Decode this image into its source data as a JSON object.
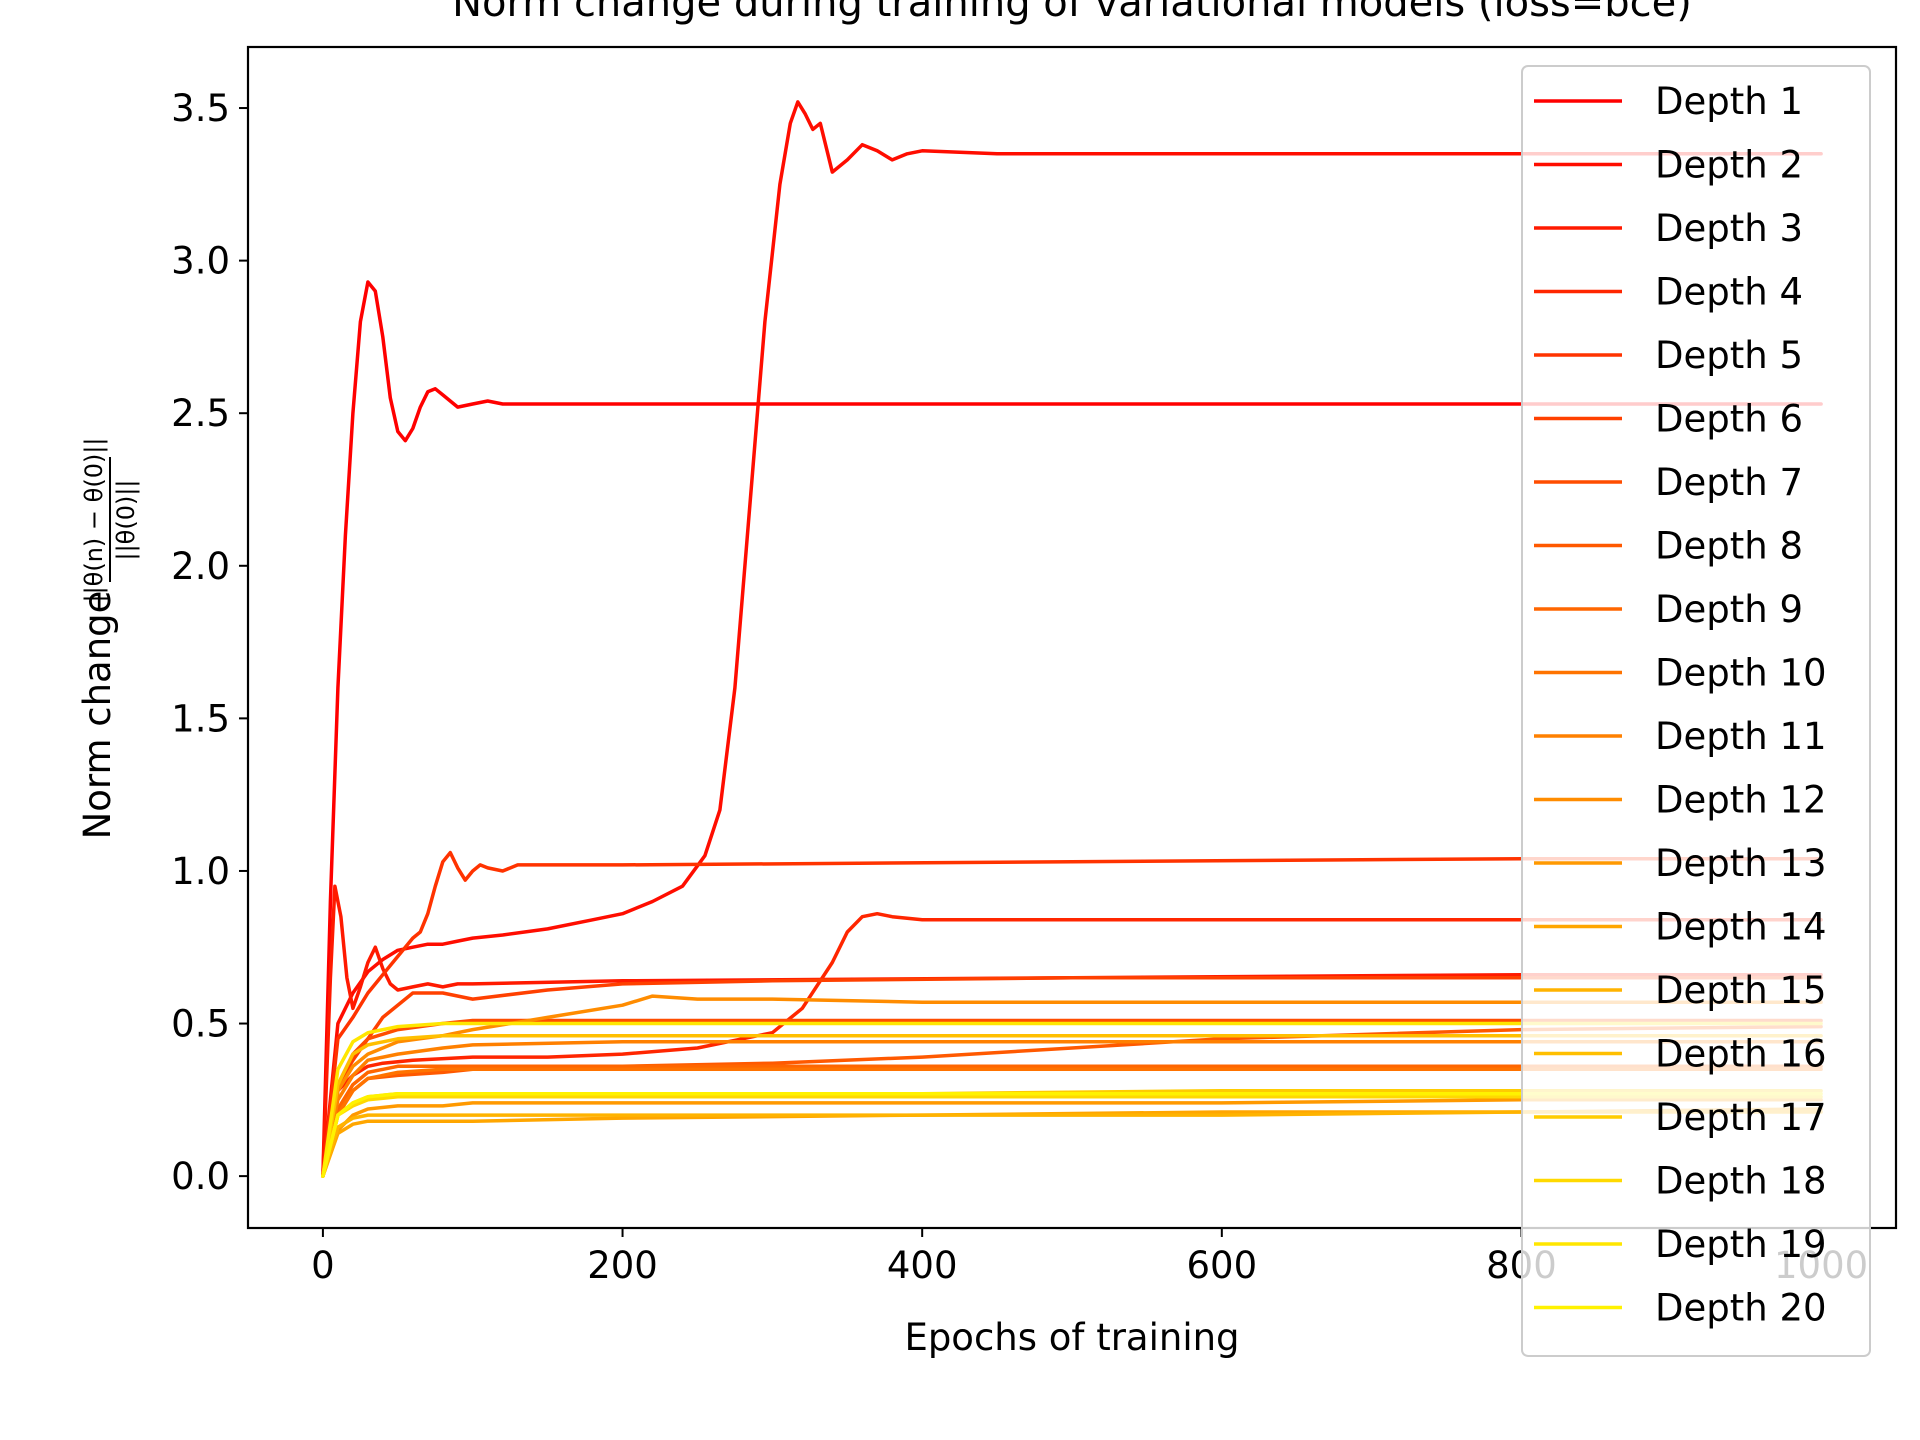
{
  "chart_data": {
    "type": "line",
    "title": "Norm change during training of variational models (loss=bce)",
    "xlabel": "Epochs of training",
    "ylabel": "Norm change",
    "ylabel_formula": {
      "numerator": "||θ(n) − θ(0)||",
      "denominator": "||θ(0)||"
    },
    "xlim": [
      -50,
      1050
    ],
    "ylim": [
      -0.17,
      3.7
    ],
    "xticks": [
      0,
      200,
      400,
      600,
      800,
      1000
    ],
    "xtick_labels": [
      "0",
      "200",
      "400",
      "600",
      "800",
      "1000"
    ],
    "yticks": [
      0.0,
      0.5,
      1.0,
      1.5,
      2.0,
      2.5,
      3.0,
      3.5
    ],
    "ytick_labels": [
      "0.0",
      "0.5",
      "1.0",
      "1.5",
      "2.0",
      "2.5",
      "3.0",
      "3.5"
    ],
    "grid": false,
    "legend_position": "upper right",
    "series": [
      {
        "name": "Depth 1",
        "color": "#ff0000",
        "x": [
          0,
          5,
          10,
          15,
          20,
          25,
          30,
          35,
          40,
          45,
          50,
          55,
          60,
          65,
          70,
          75,
          80,
          90,
          100,
          110,
          120,
          140,
          160,
          200,
          300,
          500,
          800,
          1000
        ],
        "values": [
          0,
          0.9,
          1.6,
          2.1,
          2.5,
          2.8,
          2.93,
          2.9,
          2.75,
          2.55,
          2.44,
          2.41,
          2.45,
          2.52,
          2.57,
          2.58,
          2.56,
          2.52,
          2.53,
          2.54,
          2.53,
          2.53,
          2.53,
          2.53,
          2.53,
          2.53,
          2.53,
          2.53
        ]
      },
      {
        "name": "Depth 2",
        "color": "#ff0d00",
        "x": [
          0,
          10,
          20,
          30,
          40,
          50,
          60,
          70,
          80,
          90,
          100,
          120,
          150,
          180,
          200,
          220,
          240,
          255,
          265,
          275,
          285,
          295,
          305,
          312,
          317,
          322,
          327,
          332,
          340,
          350,
          360,
          370,
          380,
          390,
          400,
          450,
          500,
          800,
          1000
        ],
        "values": [
          0,
          0.5,
          0.6,
          0.67,
          0.71,
          0.74,
          0.75,
          0.76,
          0.76,
          0.77,
          0.78,
          0.79,
          0.81,
          0.84,
          0.86,
          0.9,
          0.95,
          1.05,
          1.2,
          1.6,
          2.2,
          2.8,
          3.25,
          3.45,
          3.52,
          3.48,
          3.43,
          3.45,
          3.29,
          3.33,
          3.38,
          3.36,
          3.33,
          3.35,
          3.36,
          3.35,
          3.35,
          3.35,
          3.35
        ]
      },
      {
        "name": "Depth 3",
        "color": "#ff1a00",
        "x": [
          0,
          5,
          8,
          12,
          16,
          20,
          25,
          30,
          35,
          40,
          45,
          50,
          60,
          70,
          80,
          90,
          100,
          200,
          500,
          800,
          1000
        ],
        "values": [
          0,
          0.65,
          0.95,
          0.85,
          0.65,
          0.55,
          0.62,
          0.7,
          0.75,
          0.68,
          0.63,
          0.61,
          0.62,
          0.63,
          0.62,
          0.63,
          0.63,
          0.64,
          0.65,
          0.66,
          0.66
        ]
      },
      {
        "name": "Depth 4",
        "color": "#ff2600",
        "x": [
          0,
          10,
          20,
          30,
          40,
          60,
          100,
          150,
          200,
          250,
          300,
          320,
          340,
          350,
          360,
          370,
          380,
          400,
          500,
          800,
          1000
        ],
        "values": [
          0,
          0.28,
          0.33,
          0.36,
          0.37,
          0.38,
          0.39,
          0.39,
          0.4,
          0.42,
          0.47,
          0.55,
          0.7,
          0.8,
          0.85,
          0.86,
          0.85,
          0.84,
          0.84,
          0.84,
          0.84
        ]
      },
      {
        "name": "Depth 5",
        "color": "#ff3300",
        "x": [
          0,
          10,
          20,
          30,
          40,
          50,
          60,
          65,
          70,
          75,
          80,
          85,
          90,
          95,
          100,
          105,
          110,
          120,
          130,
          140,
          160,
          200,
          500,
          800,
          1000
        ],
        "values": [
          0,
          0.45,
          0.52,
          0.6,
          0.66,
          0.72,
          0.78,
          0.8,
          0.86,
          0.95,
          1.03,
          1.06,
          1.01,
          0.97,
          1.0,
          1.02,
          1.01,
          1.0,
          1.02,
          1.02,
          1.02,
          1.02,
          1.03,
          1.04,
          1.04
        ]
      },
      {
        "name": "Depth 6",
        "color": "#ff4000",
        "x": [
          0,
          10,
          20,
          30,
          40,
          60,
          80,
          100,
          150,
          200,
          300,
          500,
          800,
          1000
        ],
        "values": [
          0,
          0.3,
          0.38,
          0.45,
          0.52,
          0.6,
          0.6,
          0.58,
          0.61,
          0.63,
          0.64,
          0.65,
          0.65,
          0.65
        ]
      },
      {
        "name": "Depth 7",
        "color": "#ff4d00",
        "x": [
          0,
          10,
          20,
          30,
          50,
          80,
          100,
          200,
          400,
          600,
          800,
          1000
        ],
        "values": [
          0,
          0.3,
          0.4,
          0.45,
          0.48,
          0.5,
          0.51,
          0.51,
          0.51,
          0.51,
          0.51,
          0.51
        ]
      },
      {
        "name": "Depth 8",
        "color": "#ff5900",
        "x": [
          0,
          10,
          20,
          30,
          50,
          80,
          100,
          200,
          300,
          400,
          500,
          600,
          800,
          1000
        ],
        "values": [
          0,
          0.2,
          0.28,
          0.32,
          0.33,
          0.34,
          0.35,
          0.36,
          0.37,
          0.39,
          0.42,
          0.45,
          0.48,
          0.49
        ]
      },
      {
        "name": "Depth 9",
        "color": "#ff6600",
        "x": [
          0,
          10,
          20,
          30,
          50,
          80,
          100,
          200,
          400,
          600,
          800,
          1000
        ],
        "values": [
          0,
          0.22,
          0.3,
          0.34,
          0.36,
          0.36,
          0.36,
          0.36,
          0.36,
          0.36,
          0.36,
          0.36
        ]
      },
      {
        "name": "Depth 10",
        "color": "#ff7300",
        "x": [
          0,
          10,
          20,
          30,
          50,
          80,
          100,
          200,
          400,
          600,
          800,
          1000
        ],
        "values": [
          0,
          0.2,
          0.28,
          0.32,
          0.34,
          0.35,
          0.35,
          0.35,
          0.35,
          0.35,
          0.35,
          0.35
        ]
      },
      {
        "name": "Depth 11",
        "color": "#ff8000",
        "x": [
          0,
          10,
          20,
          30,
          50,
          80,
          100,
          200,
          400,
          600,
          800,
          1000
        ],
        "values": [
          0,
          0.25,
          0.33,
          0.38,
          0.4,
          0.42,
          0.43,
          0.44,
          0.44,
          0.44,
          0.44,
          0.44
        ]
      },
      {
        "name": "Depth 12",
        "color": "#ff8c00",
        "x": [
          0,
          10,
          20,
          30,
          50,
          80,
          100,
          150,
          200,
          220,
          250,
          300,
          400,
          600,
          800,
          1000
        ],
        "values": [
          0,
          0.28,
          0.36,
          0.4,
          0.44,
          0.46,
          0.48,
          0.52,
          0.56,
          0.59,
          0.58,
          0.58,
          0.57,
          0.57,
          0.57,
          0.57
        ]
      },
      {
        "name": "Depth 13",
        "color": "#ff9900",
        "x": [
          0,
          10,
          20,
          30,
          50,
          80,
          100,
          200,
          400,
          600,
          800,
          1000
        ],
        "values": [
          0,
          0.15,
          0.2,
          0.22,
          0.23,
          0.23,
          0.24,
          0.24,
          0.24,
          0.24,
          0.25,
          0.25
        ]
      },
      {
        "name": "Depth 14",
        "color": "#ffa600",
        "x": [
          0,
          10,
          20,
          30,
          50,
          80,
          100,
          200,
          400,
          600,
          800,
          1000
        ],
        "values": [
          0,
          0.14,
          0.17,
          0.18,
          0.18,
          0.18,
          0.18,
          0.19,
          0.2,
          0.21,
          0.21,
          0.22
        ]
      },
      {
        "name": "Depth 15",
        "color": "#ffb300",
        "x": [
          0,
          10,
          20,
          30,
          50,
          80,
          100,
          200,
          400,
          600,
          800,
          1000
        ],
        "values": [
          0,
          0.16,
          0.19,
          0.2,
          0.2,
          0.2,
          0.2,
          0.2,
          0.2,
          0.2,
          0.21,
          0.21
        ]
      },
      {
        "name": "Depth 16",
        "color": "#ffbf00",
        "x": [
          0,
          10,
          20,
          30,
          50,
          80,
          100,
          200,
          400,
          600,
          800,
          1000
        ],
        "values": [
          0,
          0.3,
          0.4,
          0.43,
          0.45,
          0.46,
          0.46,
          0.46,
          0.46,
          0.46,
          0.46,
          0.46
        ]
      },
      {
        "name": "Depth 17",
        "color": "#ffcc00",
        "x": [
          0,
          10,
          20,
          30,
          50,
          80,
          100,
          200,
          400,
          600,
          800,
          1000
        ],
        "values": [
          0,
          0.2,
          0.24,
          0.26,
          0.27,
          0.27,
          0.27,
          0.27,
          0.27,
          0.28,
          0.28,
          0.28
        ]
      },
      {
        "name": "Depth 18",
        "color": "#ffd900",
        "x": [
          0,
          10,
          20,
          30,
          50,
          80,
          100,
          200,
          400,
          600,
          800,
          1000
        ],
        "values": [
          0,
          0.2,
          0.23,
          0.25,
          0.26,
          0.26,
          0.26,
          0.26,
          0.26,
          0.26,
          0.26,
          0.26
        ]
      },
      {
        "name": "Depth 19",
        "color": "#ffe600",
        "x": [
          0,
          10,
          20,
          30,
          50,
          80,
          100,
          200,
          400,
          600,
          800,
          1000
        ],
        "values": [
          0,
          0.35,
          0.44,
          0.47,
          0.49,
          0.5,
          0.5,
          0.5,
          0.5,
          0.5,
          0.5,
          0.5
        ]
      },
      {
        "name": "Depth 20",
        "color": "#fff200",
        "x": [
          0,
          10,
          20,
          30,
          50,
          80,
          100,
          200,
          400,
          600,
          800,
          1000
        ],
        "values": [
          0,
          0.2,
          0.24,
          0.26,
          0.27,
          0.27,
          0.27,
          0.27,
          0.27,
          0.27,
          0.27,
          0.27
        ]
      }
    ]
  }
}
